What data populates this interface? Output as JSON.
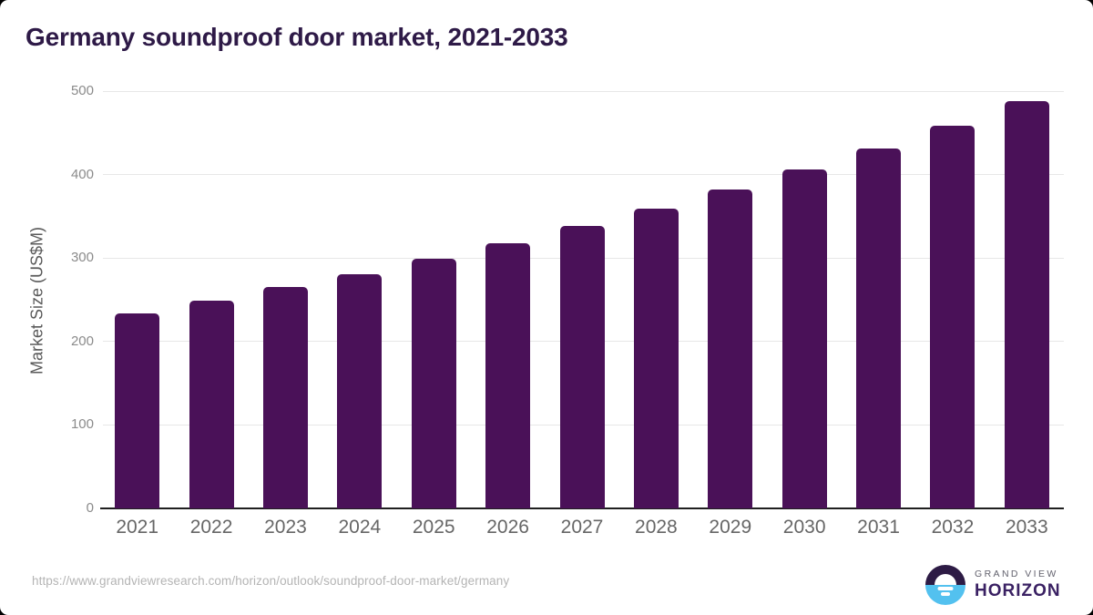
{
  "page": {
    "background_color": "#000000",
    "card_background_color": "#ffffff"
  },
  "chart_data": {
    "type": "bar",
    "title": "Germany soundproof door market, 2021-2033",
    "xlabel": "",
    "ylabel": "Market Size (US$M)",
    "categories": [
      "2021",
      "2022",
      "2023",
      "2024",
      "2025",
      "2026",
      "2027",
      "2028",
      "2029",
      "2030",
      "2031",
      "2032",
      "2033"
    ],
    "values": [
      234,
      249,
      265,
      281,
      299,
      318,
      338,
      359,
      382,
      406,
      431,
      458,
      488
    ],
    "ylim": [
      0,
      500
    ],
    "yticks": [
      0,
      100,
      200,
      300,
      400,
      500
    ],
    "grid": "horizontal",
    "legend": "none",
    "colors": {
      "bar": "#4a1158",
      "title": "#2e1a47",
      "ytick_text": "#8b8b8b",
      "xtick_text": "#666666",
      "gridline": "#e7e7e7",
      "axis_line": "#1f1f1f"
    }
  },
  "footer": {
    "url": "https://www.grandviewresearch.com/horizon/outlook/soundproof-door-market/germany"
  },
  "logo": {
    "brand_line1": "GRAND VIEW",
    "brand_line2": "HORIZON",
    "icon": "horizon-sun-icon",
    "icon_colors": {
      "top_half": "#2d1b45",
      "bottom_half": "#53c1ef",
      "sun": "#ffffff"
    }
  }
}
